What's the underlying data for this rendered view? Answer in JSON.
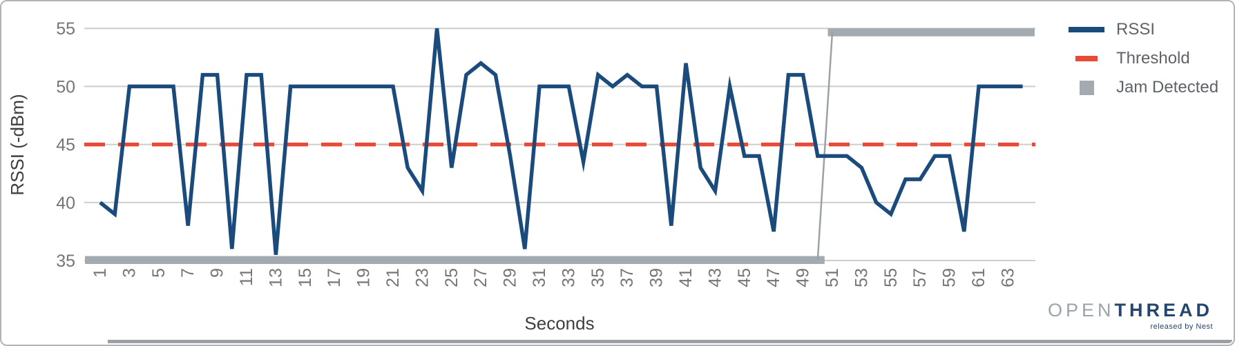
{
  "chart_data": {
    "type": "line",
    "title": "",
    "xlabel": "Seconds",
    "ylabel": "RSSI (-dBm)",
    "x": [
      1,
      2,
      3,
      4,
      5,
      6,
      7,
      8,
      9,
      10,
      11,
      12,
      13,
      14,
      15,
      16,
      17,
      18,
      19,
      20,
      21,
      22,
      23,
      24,
      25,
      26,
      27,
      28,
      29,
      30,
      31,
      32,
      33,
      34,
      35,
      36,
      37,
      38,
      39,
      40,
      41,
      42,
      43,
      44,
      45,
      46,
      47,
      48,
      49,
      50,
      51,
      52,
      53,
      54,
      55,
      56,
      57,
      58,
      59,
      60,
      61,
      62,
      63,
      64
    ],
    "series": [
      {
        "name": "RSSI",
        "type": "line",
        "color": "#1A4B7C",
        "values": [
          40,
          39,
          50,
          50,
          50,
          50,
          38,
          51,
          51,
          36,
          51,
          51,
          35.5,
          50,
          50,
          50,
          50,
          50,
          50,
          50,
          50,
          43,
          41,
          55,
          43,
          51,
          52,
          51,
          44,
          36,
          50,
          50,
          50,
          43.5,
          51,
          50,
          51,
          50,
          50,
          38,
          52,
          43,
          41,
          50,
          44,
          44,
          37.5,
          51,
          51,
          44,
          44,
          44,
          43,
          40,
          39,
          42,
          42,
          44,
          44,
          37.5,
          50,
          50,
          50,
          50
        ]
      },
      {
        "name": "Threshold",
        "type": "horizontal-dashed-line",
        "color": "#E74B37",
        "value": 45
      },
      {
        "name": "Jam Detected",
        "type": "marker-band",
        "color": "#A3ABB1",
        "values": [
          0,
          0,
          0,
          0,
          0,
          0,
          0,
          0,
          0,
          0,
          0,
          0,
          0,
          0,
          0,
          0,
          0,
          0,
          0,
          0,
          0,
          0,
          0,
          0,
          0,
          0,
          0,
          0,
          0,
          0,
          0,
          0,
          0,
          0,
          0,
          0,
          0,
          0,
          0,
          0,
          0,
          0,
          0,
          0,
          0,
          0,
          0,
          0,
          0,
          0,
          1,
          1,
          1,
          1,
          1,
          1,
          1,
          1,
          1,
          1,
          1,
          1,
          1,
          1
        ],
        "display_low_level": 35,
        "display_high_level": 55,
        "transition_x": 51
      }
    ],
    "ylim": [
      35,
      55
    ],
    "yticks": [
      35,
      40,
      45,
      50,
      55
    ],
    "xticks": [
      1,
      3,
      5,
      7,
      9,
      11,
      13,
      15,
      17,
      19,
      21,
      23,
      25,
      27,
      29,
      31,
      33,
      35,
      37,
      39,
      41,
      43,
      45,
      47,
      49,
      51,
      53,
      55,
      57,
      59,
      61,
      63
    ],
    "x_tick_rotation": -90,
    "grid": "horizontal",
    "legend_position": "top-right"
  },
  "logo": {
    "open": "OPEN",
    "thread": "THREAD",
    "tagline": "released by Nest"
  },
  "colors": {
    "rssi_blue": "#1A4B7C",
    "threshold_red": "#E74B37",
    "jam_gray": "#A3ABB1",
    "jam_connector": "#9aa2a7",
    "gridline": "#cccccc",
    "tick_label": "#757575",
    "axis_title": "#3C4043",
    "legend_text": "#5f6368",
    "logo_open": "#9AA4A9",
    "logo_thread": "#24466E"
  }
}
